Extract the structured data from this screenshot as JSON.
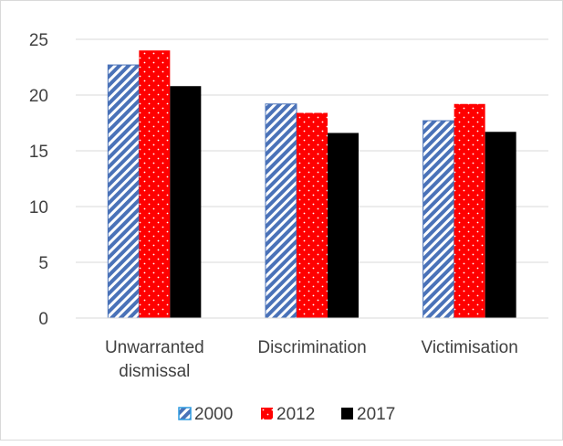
{
  "chart_data": {
    "type": "bar",
    "title": "",
    "xlabel": "",
    "ylabel": "",
    "categories": [
      [
        "Unwarranted",
        "dismissal"
      ],
      [
        "Discrimination"
      ],
      [
        "Victimisation"
      ]
    ],
    "series": [
      {
        "name": "2000",
        "values": [
          22.7,
          19.2,
          17.7
        ],
        "color": "#4a72b8",
        "pattern": "diagonal-stripes"
      },
      {
        "name": "2012",
        "values": [
          24.0,
          18.4,
          19.2
        ],
        "color": "#ff0000",
        "pattern": "dotted"
      },
      {
        "name": "2017",
        "values": [
          20.8,
          16.6,
          16.7
        ],
        "color": "#000000",
        "pattern": "solid"
      }
    ],
    "ylim": [
      0,
      25
    ],
    "yticks": [
      "0",
      "5",
      "10",
      "15",
      "20",
      "25"
    ],
    "grid": true,
    "legend": "bottom"
  }
}
